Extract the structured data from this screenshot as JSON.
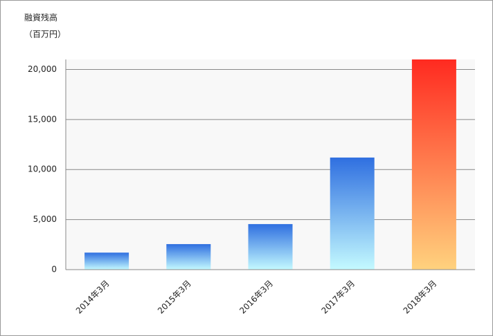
{
  "chart_data": {
    "type": "bar",
    "title": "融資残高",
    "y_unit": "（百万円）",
    "categories": [
      "2014年3月",
      "2015年3月",
      "2016年3月",
      "2017年3月",
      "2018年3月"
    ],
    "values": [
      1700,
      2550,
      4550,
      11200,
      21000
    ],
    "colors": [
      [
        "#2f6fe0",
        "#c4faff"
      ],
      [
        "#2f6fe0",
        "#c4faff"
      ],
      [
        "#2f6fe0",
        "#c4faff"
      ],
      [
        "#2f6fe0",
        "#c4faff"
      ],
      [
        "#ff2a20",
        "#ffd27e"
      ]
    ],
    "ylim": [
      0,
      21000
    ],
    "yticks": [
      0,
      {
        "value": 5000,
        "label": "5,000"
      },
      {
        "value": 10000,
        "label": "10,000"
      },
      {
        "value": 15000,
        "label": "15,000"
      },
      {
        "value": 20000,
        "label": "20,000"
      }
    ],
    "grid": true
  }
}
